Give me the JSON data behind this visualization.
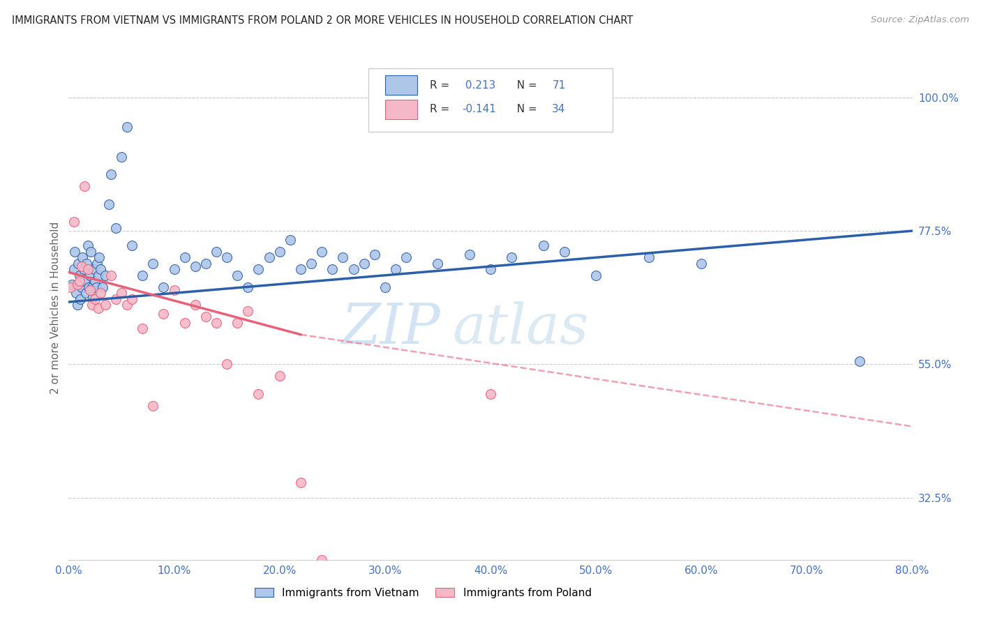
{
  "title": "IMMIGRANTS FROM VIETNAM VS IMMIGRANTS FROM POLAND 2 OR MORE VEHICLES IN HOUSEHOLD CORRELATION CHART",
  "source": "Source: ZipAtlas.com",
  "ylabel": "2 or more Vehicles in Household",
  "xlim": [
    0.0,
    80.0
  ],
  "ylim": [
    22.0,
    107.0
  ],
  "yticks_right": [
    32.5,
    55.0,
    77.5,
    100.0
  ],
  "xticks": [
    0.0,
    10.0,
    20.0,
    30.0,
    40.0,
    50.0,
    60.0,
    70.0,
    80.0
  ],
  "vietnam_color": "#aec6e8",
  "poland_color": "#f5b8c8",
  "vietnam_line_color": "#2c5faa",
  "poland_line_color": "#e8607a",
  "legend1_label": "Immigrants from Vietnam",
  "legend2_label": "Immigrants from Poland",
  "watermark_zip": "ZIP",
  "watermark_atlas": "atlas",
  "vietnam_scatter_x": [
    0.3,
    0.5,
    0.6,
    0.7,
    0.8,
    0.9,
    1.0,
    1.1,
    1.2,
    1.3,
    1.4,
    1.5,
    1.6,
    1.7,
    1.8,
    1.9,
    2.0,
    2.1,
    2.2,
    2.3,
    2.4,
    2.5,
    2.6,
    2.7,
    2.8,
    2.9,
    3.0,
    3.2,
    3.5,
    3.8,
    4.0,
    4.5,
    5.0,
    5.5,
    6.0,
    7.0,
    8.0,
    9.0,
    10.0,
    11.0,
    12.0,
    13.0,
    14.0,
    15.0,
    16.0,
    17.0,
    18.0,
    19.0,
    20.0,
    21.0,
    22.0,
    23.0,
    24.0,
    25.0,
    26.0,
    27.0,
    28.0,
    29.0,
    30.0,
    31.0,
    32.0,
    35.0,
    38.0,
    40.0,
    42.0,
    45.0,
    47.0,
    50.0,
    55.0,
    60.0,
    75.0
  ],
  "vietnam_scatter_y": [
    68.5,
    71.0,
    74.0,
    67.0,
    65.0,
    72.0,
    70.0,
    66.0,
    68.0,
    73.0,
    71.0,
    69.0,
    67.0,
    72.0,
    75.0,
    68.0,
    70.0,
    74.0,
    68.0,
    66.5,
    71.0,
    69.0,
    68.0,
    72.0,
    70.0,
    73.0,
    71.0,
    68.0,
    70.0,
    82.0,
    87.0,
    78.0,
    90.0,
    95.0,
    75.0,
    70.0,
    72.0,
    68.0,
    71.0,
    73.0,
    71.5,
    72.0,
    74.0,
    73.0,
    70.0,
    68.0,
    71.0,
    73.0,
    74.0,
    76.0,
    71.0,
    72.0,
    74.0,
    71.0,
    73.0,
    71.0,
    72.0,
    73.5,
    68.0,
    71.0,
    73.0,
    72.0,
    73.5,
    71.0,
    73.0,
    75.0,
    74.0,
    70.0,
    73.0,
    72.0,
    55.5
  ],
  "poland_scatter_x": [
    0.2,
    0.5,
    0.8,
    1.0,
    1.2,
    1.5,
    1.8,
    2.0,
    2.2,
    2.5,
    2.8,
    3.0,
    3.5,
    4.0,
    4.5,
    5.0,
    5.5,
    6.0,
    7.0,
    8.0,
    9.0,
    10.0,
    11.0,
    12.0,
    13.0,
    14.0,
    15.0,
    16.0,
    17.0,
    18.0,
    20.0,
    22.0,
    24.0,
    40.0
  ],
  "poland_scatter_y": [
    68.0,
    79.0,
    68.5,
    69.0,
    71.5,
    85.0,
    71.0,
    67.5,
    65.0,
    66.0,
    64.5,
    67.0,
    65.0,
    70.0,
    66.0,
    67.0,
    65.0,
    66.0,
    61.0,
    48.0,
    63.5,
    67.5,
    62.0,
    65.0,
    63.0,
    62.0,
    55.0,
    62.0,
    64.0,
    50.0,
    53.0,
    35.0,
    22.0,
    50.0
  ],
  "vietnam_line_x0": 0.0,
  "vietnam_line_y0": 65.5,
  "vietnam_line_x1": 80.0,
  "vietnam_line_y1": 77.5,
  "poland_solid_x0": 0.0,
  "poland_solid_y0": 70.5,
  "poland_solid_x1": 22.0,
  "poland_solid_y1": 60.0,
  "poland_dash_x0": 22.0,
  "poland_dash_y0": 60.0,
  "poland_dash_x1": 80.0,
  "poland_dash_y1": 44.5
}
